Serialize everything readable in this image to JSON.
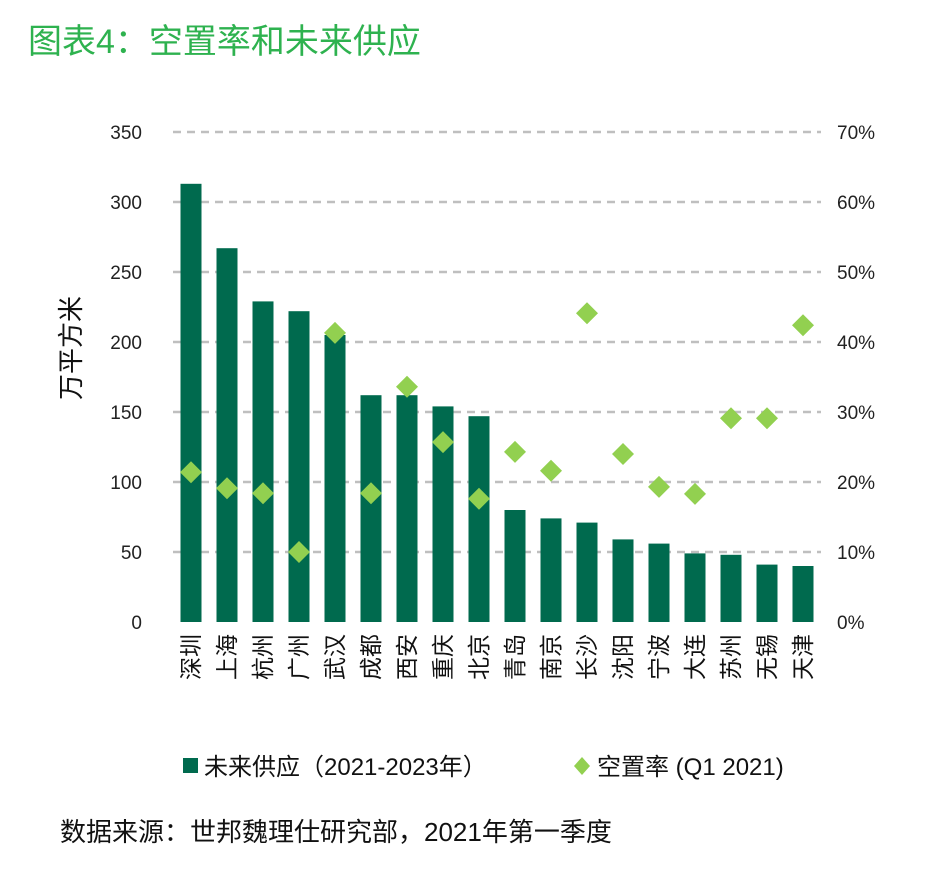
{
  "title": "图表4：空置率和未来供应",
  "source": "数据来源：世邦魏理仕研究部，2021年第一季度",
  "colors": {
    "bar": "#006a4e",
    "diamond": "#92d050",
    "grid": "#bfbfbf",
    "title": "#2eb24f"
  },
  "chart_data": {
    "type": "bar",
    "categories": [
      "深圳",
      "上海",
      "杭州",
      "广州",
      "武汉",
      "成都",
      "西安",
      "重庆",
      "北京",
      "青岛",
      "南京",
      "长沙",
      "沈阳",
      "宁波",
      "大连",
      "苏州",
      "无锡",
      "天津"
    ],
    "series": [
      {
        "name": "未来供应（2021-2023年）",
        "type": "bar",
        "axis": "left",
        "values": [
          313,
          267,
          229,
          222,
          205,
          162,
          162,
          154,
          147,
          80,
          74,
          71,
          59,
          56,
          49,
          48,
          41,
          40
        ]
      },
      {
        "name": "空置率 (Q1 2021)",
        "type": "scatter",
        "marker": "diamond",
        "axis": "right",
        "values": [
          21.4,
          19.1,
          18.4,
          10.0,
          41.3,
          18.4,
          33.6,
          25.7,
          17.6,
          24.3,
          21.6,
          44.1,
          24.0,
          19.3,
          18.3,
          29.1,
          29.1,
          42.4
        ]
      }
    ],
    "ylabel": "万平方米",
    "ylim": [
      0,
      350
    ],
    "yticks": [
      "0",
      "50",
      "100",
      "150",
      "200",
      "250",
      "300",
      "350"
    ],
    "y2lim": [
      0,
      70
    ],
    "y2ticks": [
      "0%",
      "10%",
      "20%",
      "30%",
      "40%",
      "50%",
      "60%",
      "70%"
    ],
    "grid": true,
    "legend": "bottom"
  }
}
